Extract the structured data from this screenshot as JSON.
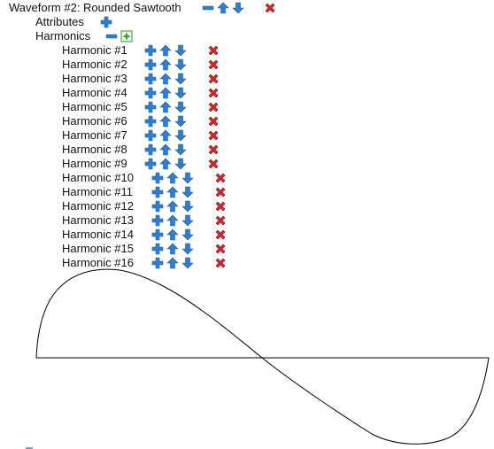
{
  "waveform": {
    "title": "Waveform #2: Rounded Sawtooth"
  },
  "attributes": {
    "label": "Attributes"
  },
  "harmonics": {
    "label": "Harmonics",
    "items": [
      {
        "label": "Harmonic #1"
      },
      {
        "label": "Harmonic #2"
      },
      {
        "label": "Harmonic #3"
      },
      {
        "label": "Harmonic #4"
      },
      {
        "label": "Harmonic #5"
      },
      {
        "label": "Harmonic #6"
      },
      {
        "label": "Harmonic #7"
      },
      {
        "label": "Harmonic #8"
      },
      {
        "label": "Harmonic #9"
      },
      {
        "label": "Harmonic #10"
      },
      {
        "label": "Harmonic #11"
      },
      {
        "label": "Harmonic #12"
      },
      {
        "label": "Harmonic #13"
      },
      {
        "label": "Harmonic #14"
      },
      {
        "label": "Harmonic #15"
      },
      {
        "label": "Harmonic #16"
      }
    ]
  },
  "icons": {
    "add": "plus-icon",
    "remove": "minus-icon",
    "move_up": "arrow-up-icon",
    "move_down": "arrow-down-icon",
    "delete": "delete-x-icon",
    "expand": "expand-plus-icon"
  },
  "colors": {
    "blue_icon": "#2f7fd0",
    "red_icon": "#d32a2a",
    "green_icon": "#3a9a3a",
    "waveform_line": "#000000"
  }
}
